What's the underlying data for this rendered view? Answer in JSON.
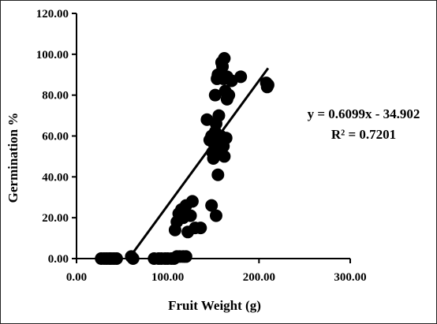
{
  "chart_data": {
    "type": "scatter",
    "xlabel": "Fruit Weight (g)",
    "ylabel": "Germination %",
    "xlim": [
      0,
      300
    ],
    "ylim": [
      0,
      120
    ],
    "x_ticks": [
      "0.00",
      "100.00",
      "200.00",
      "300.00"
    ],
    "y_ticks": [
      "0.00",
      "20.00",
      "40.00",
      "60.00",
      "80.00",
      "100.00",
      "120.00"
    ],
    "grid": false,
    "legend": "none",
    "marker_color": "#000000",
    "annotations": {
      "equation": "y = 0.6099x - 34.902",
      "r_squared": "R² = 0.7201"
    },
    "trendline": {
      "slope": 0.6099,
      "intercept": -34.902,
      "x_range": [
        57,
        210
      ]
    },
    "series": [
      {
        "points": [
          [
            27,
            0
          ],
          [
            30,
            0
          ],
          [
            33,
            0
          ],
          [
            36,
            0
          ],
          [
            38,
            0
          ],
          [
            41,
            0
          ],
          [
            44,
            0
          ],
          [
            60,
            1
          ],
          [
            62,
            0
          ],
          [
            85,
            0
          ],
          [
            90,
            0
          ],
          [
            93,
            0
          ],
          [
            97,
            0
          ],
          [
            100,
            0
          ],
          [
            104,
            0
          ],
          [
            107,
            0
          ],
          [
            110,
            1
          ],
          [
            113,
            1
          ],
          [
            117,
            1
          ],
          [
            120,
            1
          ],
          [
            108,
            14
          ],
          [
            110,
            18
          ],
          [
            112,
            22
          ],
          [
            115,
            24
          ],
          [
            117,
            20
          ],
          [
            120,
            26
          ],
          [
            122,
            13
          ],
          [
            125,
            21
          ],
          [
            127,
            28
          ],
          [
            130,
            15
          ],
          [
            136,
            15
          ],
          [
            148,
            26
          ],
          [
            153,
            21
          ],
          [
            155,
            41
          ],
          [
            143,
            68
          ],
          [
            146,
            58
          ],
          [
            148,
            60
          ],
          [
            149,
            52
          ],
          [
            150,
            49
          ],
          [
            151,
            56
          ],
          [
            152,
            62
          ],
          [
            152,
            80
          ],
          [
            153,
            66
          ],
          [
            153,
            53
          ],
          [
            154,
            88
          ],
          [
            155,
            90
          ],
          [
            155,
            58
          ],
          [
            156,
            70
          ],
          [
            157,
            52
          ],
          [
            158,
            60
          ],
          [
            159,
            96
          ],
          [
            160,
            94
          ],
          [
            161,
            88
          ],
          [
            161,
            55
          ],
          [
            162,
            98
          ],
          [
            162,
            50
          ],
          [
            163,
            82
          ],
          [
            164,
            59
          ],
          [
            165,
            89
          ],
          [
            165,
            78
          ],
          [
            167,
            80
          ],
          [
            170,
            87
          ],
          [
            180,
            89
          ],
          [
            208,
            86
          ],
          [
            209,
            84
          ],
          [
            210,
            85
          ]
        ]
      }
    ]
  }
}
